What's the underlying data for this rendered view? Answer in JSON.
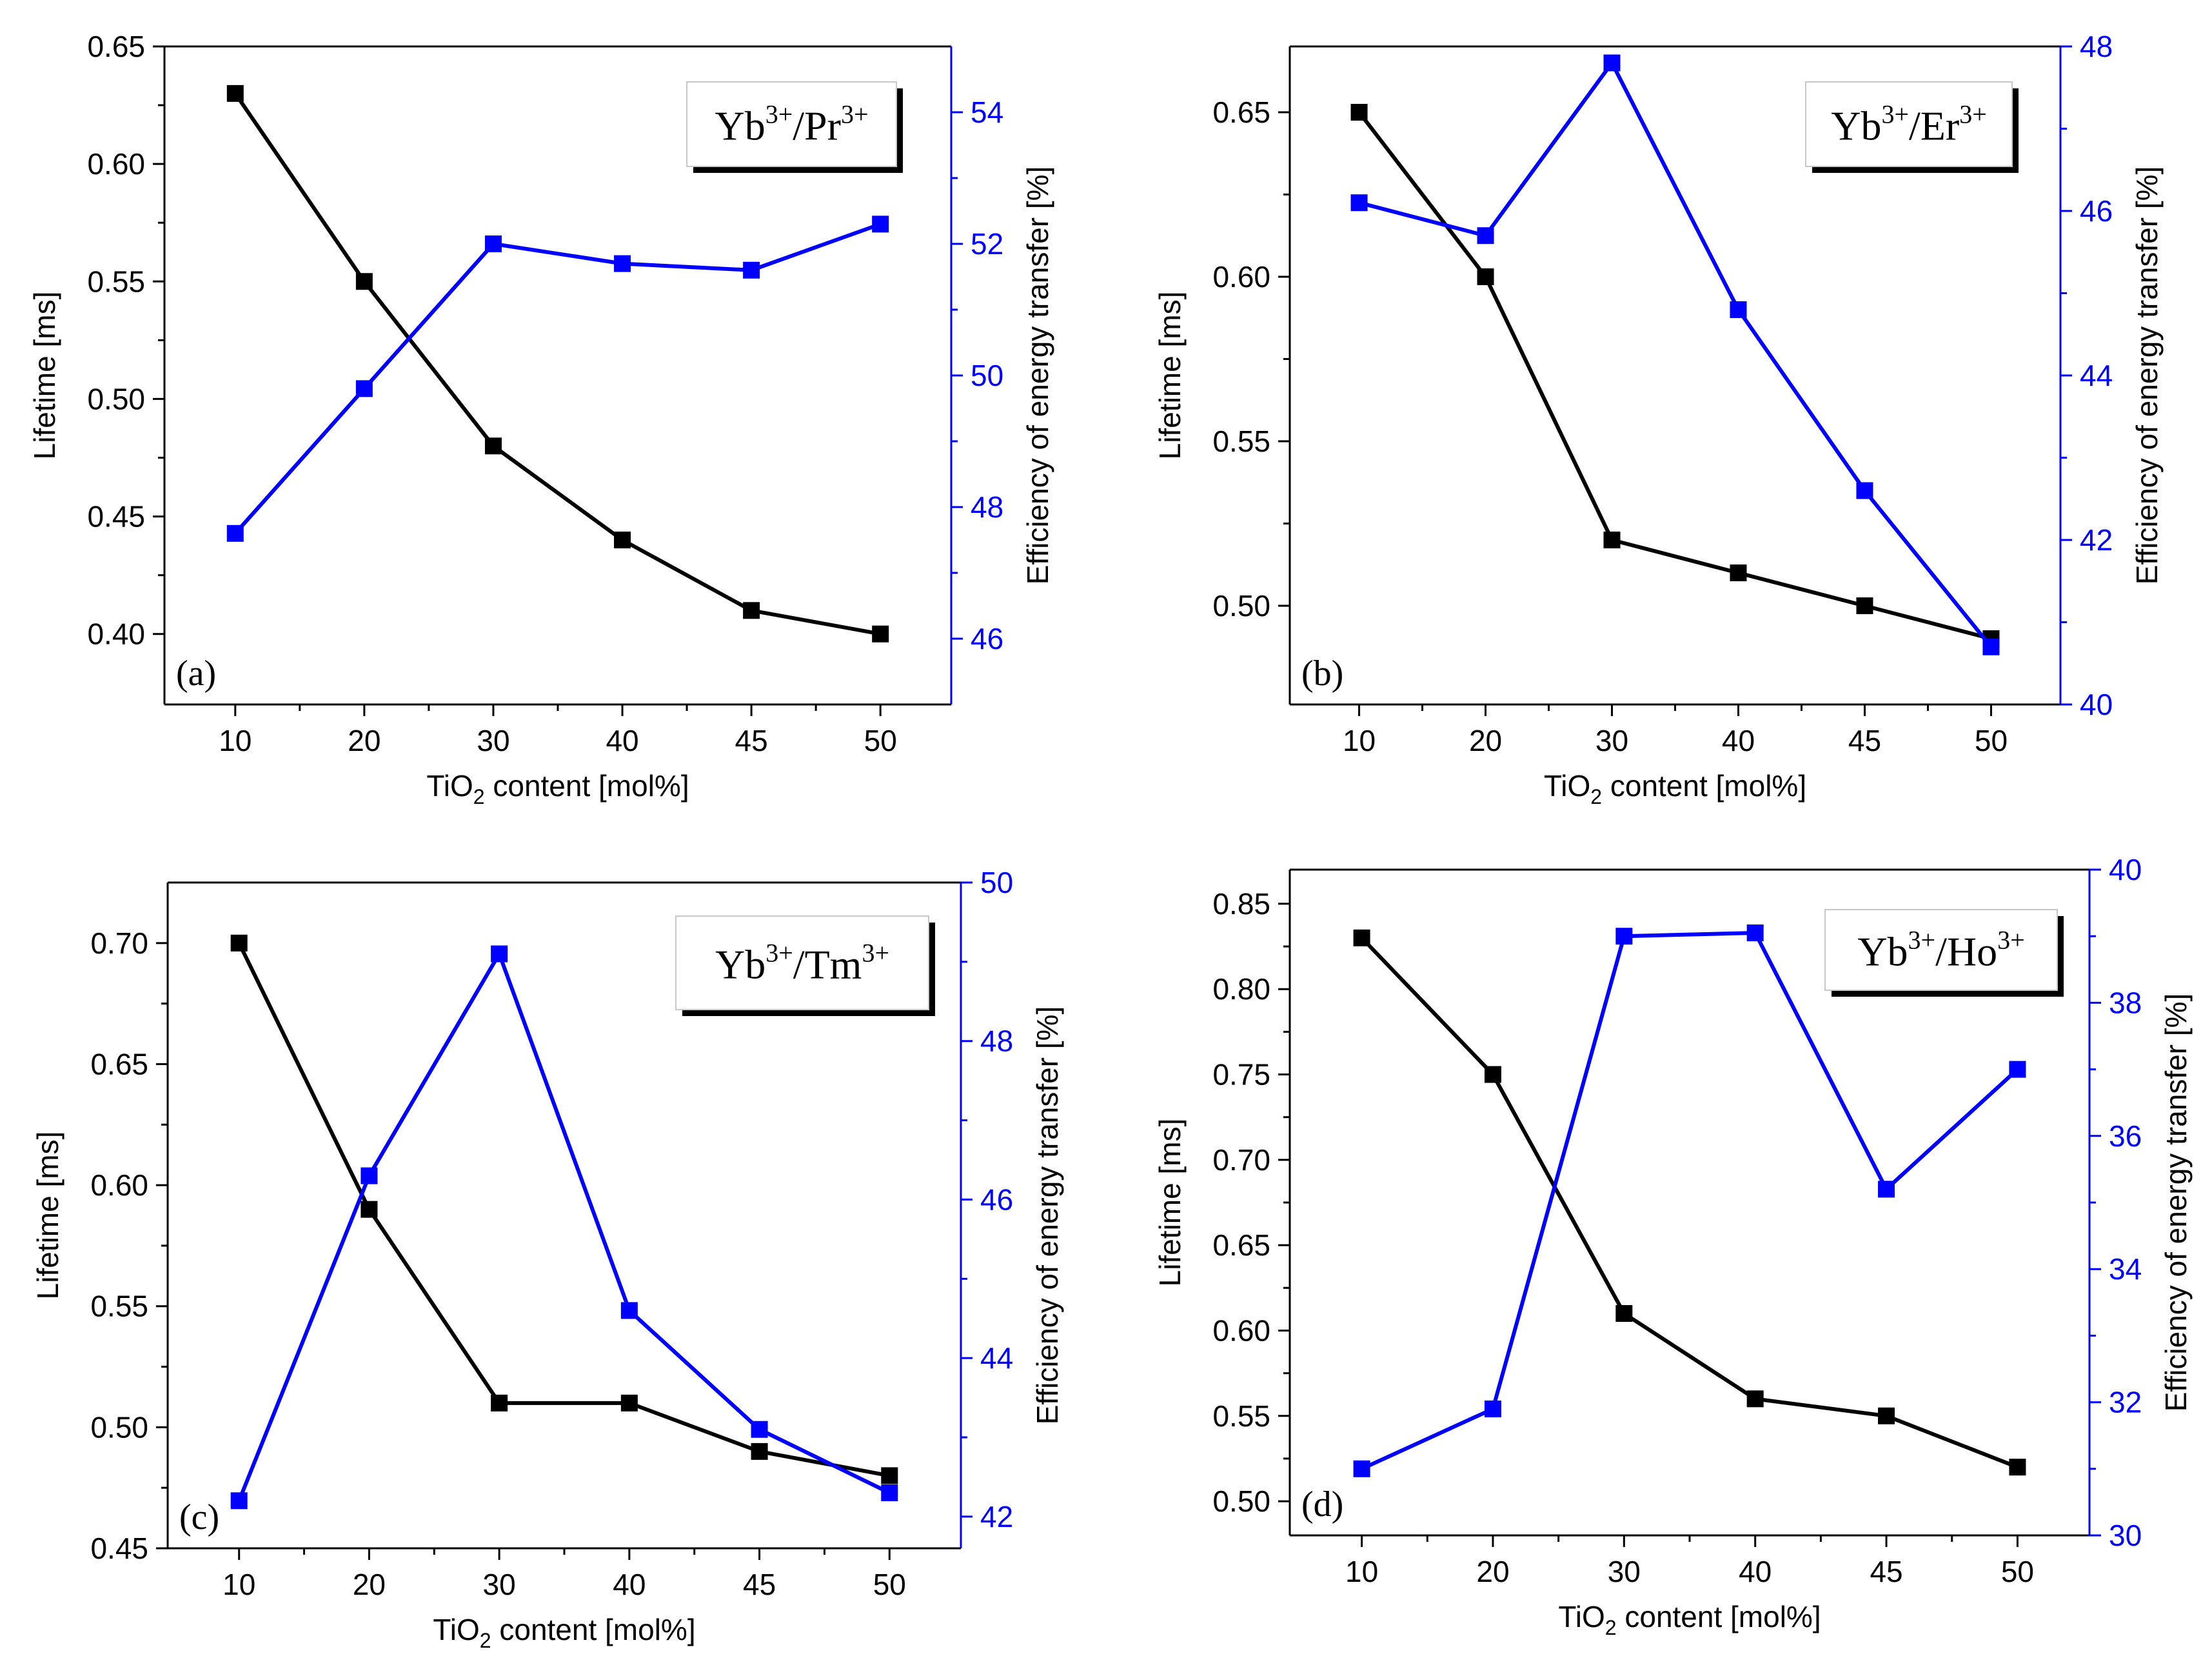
{
  "chart_data": [
    {
      "type": "line",
      "panel": "(a)",
      "title_base": "Yb",
      "title_sup": "3+",
      "title_sep": "/Pr",
      "title_sup2": "3+",
      "xlabel_pre": "TiO",
      "xlabel_sub": "2",
      "xlabel_post": " content [mol%]",
      "ylabel": "Lifetime [ms]",
      "y2label": "Efficiency of energy transfer [%]",
      "categories": [
        "10",
        "20",
        "30",
        "40",
        "45",
        "50"
      ],
      "ylim": [
        0.37,
        0.65
      ],
      "yticks": [
        "0.40",
        "0.45",
        "0.50",
        "0.55",
        "0.60",
        "0.65"
      ],
      "y2lim": [
        45,
        55
      ],
      "y2ticks": [
        "46",
        "48",
        "50",
        "52",
        "54"
      ],
      "series": [
        {
          "name": "Lifetime",
          "axis": "left",
          "color": "#000000",
          "values": [
            0.63,
            0.55,
            0.48,
            0.44,
            0.41,
            0.4
          ]
        },
        {
          "name": "Efficiency of energy transfer",
          "axis": "right",
          "color": "#0000ff",
          "values": [
            47.6,
            49.8,
            52.0,
            51.7,
            51.6,
            52.3
          ]
        }
      ]
    },
    {
      "type": "line",
      "panel": "(b)",
      "title_base": "Yb",
      "title_sup": "3+",
      "title_sep": "/Er",
      "title_sup2": "3+",
      "xlabel_pre": "TiO",
      "xlabel_sub": "2",
      "xlabel_post": " content [mol%]",
      "ylabel": "Lifetime [ms]",
      "y2label": "Efficiency of energy transfer [%]",
      "categories": [
        "10",
        "20",
        "30",
        "40",
        "45",
        "50"
      ],
      "ylim": [
        0.47,
        0.67
      ],
      "yticks": [
        "0.50",
        "0.55",
        "0.60",
        "0.65"
      ],
      "y2lim": [
        40,
        48
      ],
      "y2ticks": [
        "40",
        "42",
        "44",
        "46",
        "48"
      ],
      "series": [
        {
          "name": "Lifetime",
          "axis": "left",
          "color": "#000000",
          "values": [
            0.65,
            0.6,
            0.52,
            0.51,
            0.5,
            0.49
          ]
        },
        {
          "name": "Efficiency of energy transfer",
          "axis": "right",
          "color": "#0000ff",
          "values": [
            46.1,
            45.7,
            47.8,
            44.8,
            42.6,
            40.7
          ]
        }
      ]
    },
    {
      "type": "line",
      "panel": "(c)",
      "title_base": "Yb",
      "title_sup": "3+",
      "title_sep": "/Tm",
      "title_sup2": "3+",
      "xlabel_pre": "TiO",
      "xlabel_sub": "2",
      "xlabel_post": " content [mol%]",
      "ylabel": "Lifetime [ms]",
      "y2label": "Efficiency of energy transfer [%]",
      "categories": [
        "10",
        "20",
        "30",
        "40",
        "45",
        "50"
      ],
      "ylim": [
        0.45,
        0.725
      ],
      "yticks": [
        "0.45",
        "0.50",
        "0.55",
        "0.60",
        "0.65",
        "0.70"
      ],
      "y2lim": [
        41.6,
        50
      ],
      "y2ticks": [
        "42",
        "44",
        "46",
        "48",
        "50"
      ],
      "series": [
        {
          "name": "Lifetime",
          "axis": "left",
          "color": "#000000",
          "values": [
            0.7,
            0.59,
            0.51,
            0.51,
            0.49,
            0.48
          ]
        },
        {
          "name": "Efficiency of energy transfer",
          "axis": "right",
          "color": "#0000ff",
          "values": [
            42.2,
            46.3,
            49.1,
            44.6,
            43.1,
            42.3
          ]
        }
      ]
    },
    {
      "type": "line",
      "panel": "(d)",
      "title_base": "Yb",
      "title_sup": "3+",
      "title_sep": "/Ho",
      "title_sup2": "3+",
      "xlabel_pre": "TiO",
      "xlabel_sub": "2",
      "xlabel_post": " content [mol%]",
      "ylabel": "Lifetime [ms]",
      "y2label": "Efficiency of energy transfer [%]",
      "categories": [
        "10",
        "20",
        "30",
        "40",
        "45",
        "50"
      ],
      "ylim": [
        0.48,
        0.87
      ],
      "yticks": [
        "0.50",
        "0.55",
        "0.60",
        "0.65",
        "0.70",
        "0.75",
        "0.80",
        "0.85"
      ],
      "y2lim": [
        30,
        40
      ],
      "y2ticks": [
        "30",
        "32",
        "34",
        "36",
        "38",
        "40"
      ],
      "series": [
        {
          "name": "Lifetime",
          "axis": "left",
          "color": "#000000",
          "values": [
            0.83,
            0.75,
            0.61,
            0.56,
            0.55,
            0.52
          ]
        },
        {
          "name": "Efficiency of energy transfer",
          "axis": "right",
          "color": "#0000ff",
          "values": [
            31.0,
            31.9,
            39.0,
            39.05,
            35.2,
            37.0
          ]
        }
      ]
    }
  ]
}
